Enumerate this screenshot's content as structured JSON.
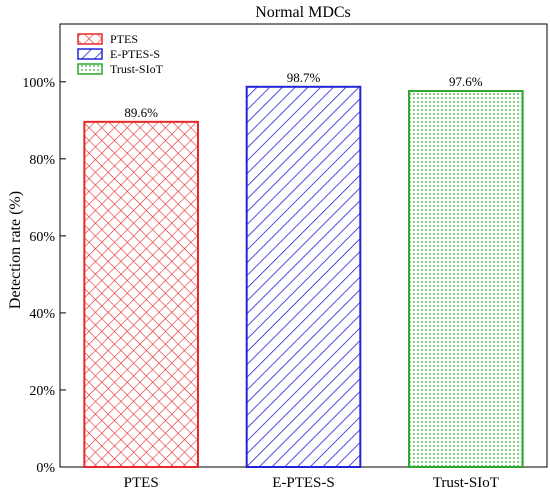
{
  "chart_data": {
    "type": "bar",
    "title": "Normal MDCs",
    "xlabel": "",
    "ylabel": "Detection rate (%)",
    "ylim": [
      0,
      115
    ],
    "yticks": [
      0,
      20,
      40,
      60,
      80,
      100
    ],
    "ytick_labels": [
      "0%",
      "20%",
      "40%",
      "60%",
      "80%",
      "100%"
    ],
    "categories": [
      "PTES",
      "E-PTES-S",
      "Trust-SIoT"
    ],
    "values": [
      89.6,
      98.7,
      97.6
    ],
    "data_labels": [
      "89.6%",
      "98.7%",
      "97.6%"
    ],
    "legend": {
      "placement": "top-left",
      "entries": [
        "PTES",
        "E-PTES-S",
        "Trust-SIoT"
      ]
    },
    "bar_styles": [
      {
        "color": "#e8282b",
        "pattern": "crosshatch"
      },
      {
        "color": "#2323d8",
        "pattern": "diagonal"
      },
      {
        "color": "#2ea82e",
        "pattern": "dots"
      }
    ],
    "grid": false
  }
}
